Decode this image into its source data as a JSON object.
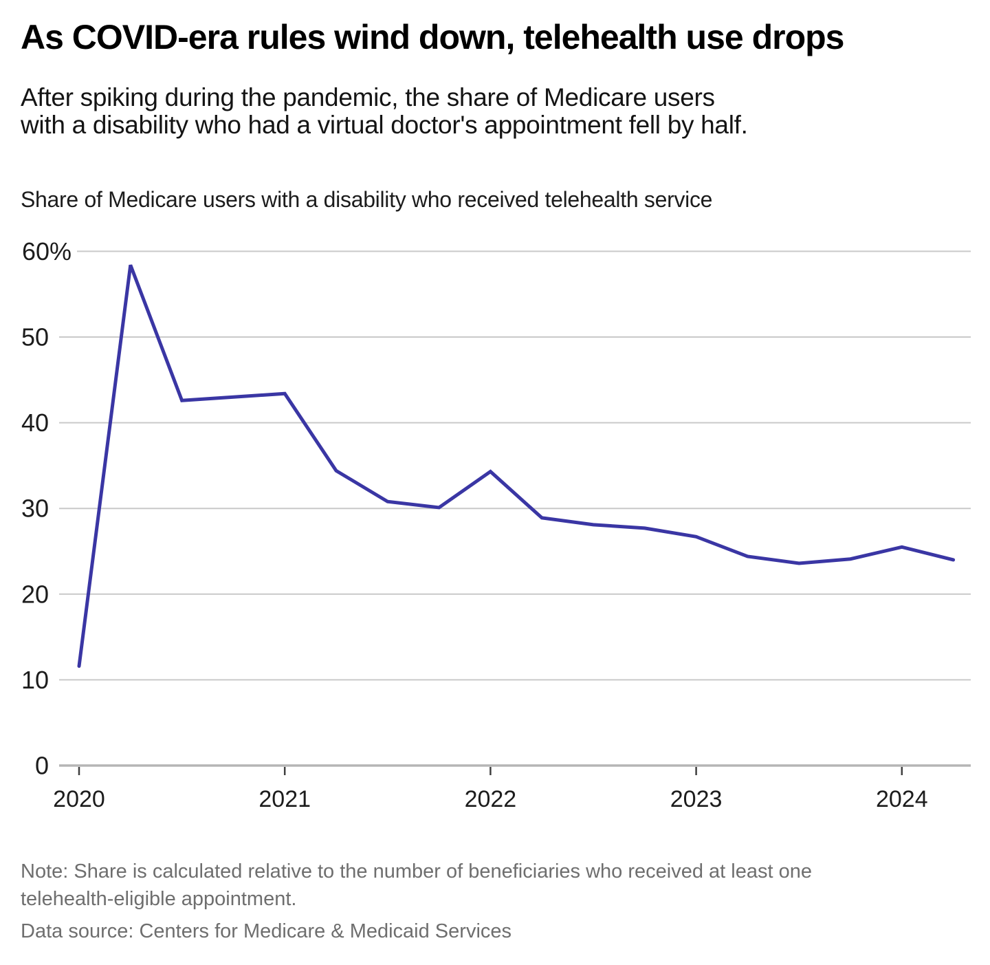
{
  "header": {
    "title": "As COVID-era rules wind down, telehealth use drops",
    "subtitle_lines": [
      "After spiking during the pandemic, the share of Medicare users",
      "with a disability who had a virtual doctor's appointment fell by half."
    ]
  },
  "chart_data": {
    "type": "line",
    "title": "Share of Medicare users with a disability who received telehealth service",
    "unit": "%",
    "x": [
      "2020 Q1",
      "2020 Q2",
      "2020 Q3",
      "2020 Q4",
      "2021 Q1",
      "2021 Q2",
      "2021 Q3",
      "2021 Q4",
      "2022 Q1",
      "2022 Q2",
      "2022 Q3",
      "2022 Q4",
      "2023 Q1",
      "2023 Q2",
      "2023 Q3",
      "2023 Q4",
      "2024 Q1",
      "2024 Q2"
    ],
    "values": [
      11.6,
      58.4,
      42.6,
      43.0,
      43.4,
      34.4,
      30.8,
      30.1,
      34.3,
      28.9,
      28.1,
      27.7,
      26.7,
      24.4,
      23.6,
      24.1,
      25.5,
      24.0
    ],
    "x_tick_labels": [
      "2020",
      "2021",
      "2022",
      "2023",
      "2024"
    ],
    "y_ticks": [
      0,
      10,
      20,
      30,
      40,
      50,
      60
    ],
    "y_tick_labels": [
      "0",
      "10",
      "20",
      "30",
      "40",
      "50",
      "60%"
    ],
    "ylim": [
      0,
      60
    ],
    "grid": true,
    "legend": "none",
    "line_color": "#3a36a4",
    "grid_color": "#c9c9c9",
    "axis_line_color": "#b5b5b5",
    "tick_color": "#3f3f3f"
  },
  "footer": {
    "note_lines": [
      "Note: Share is calculated relative to the number of beneficiaries who received at least one",
      "telehealth-eligible appointment."
    ],
    "source": "Data source: Centers for Medicare & Medicaid Services"
  }
}
